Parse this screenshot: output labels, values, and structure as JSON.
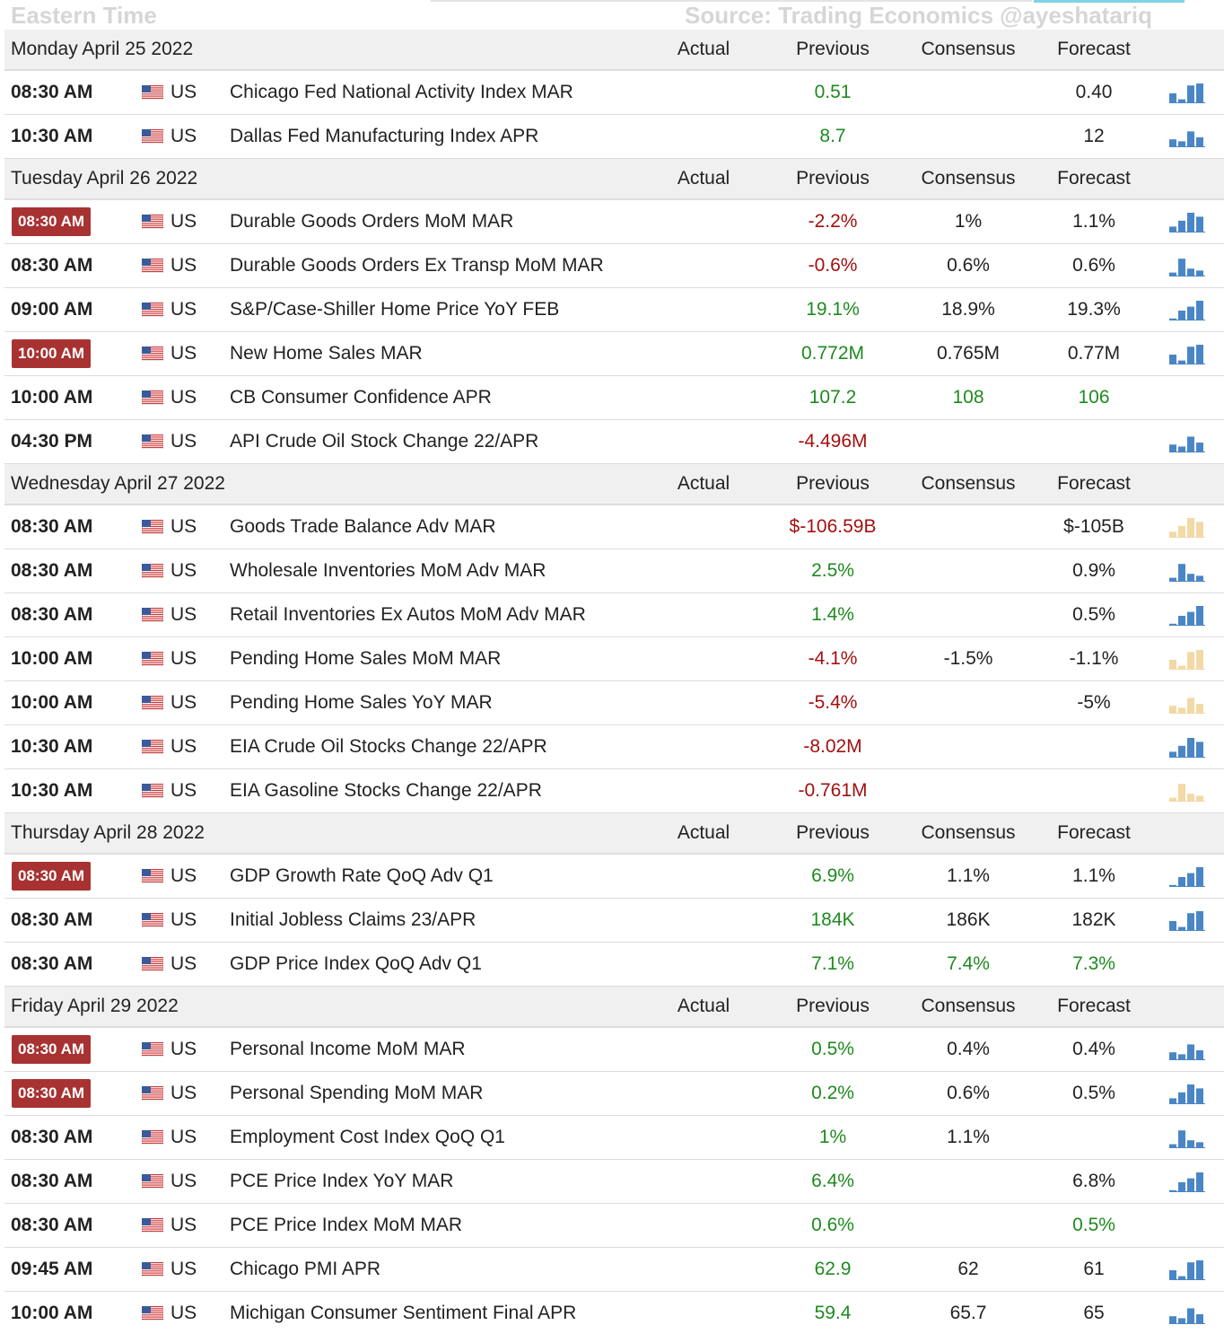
{
  "header": {
    "left": "Eastern Time",
    "right": "Source: Trading Economics @ayeshatariq"
  },
  "columns": [
    "Actual",
    "Previous",
    "Consensus",
    "Forecast"
  ],
  "days": [
    {
      "date": "Monday April 25 2022",
      "rows": [
        {
          "time": "08:30 AM",
          "country": "US",
          "event": "Chicago Fed National Activity Index MAR",
          "previous": "0.51",
          "forecast": "0.40",
          "colors": {
            "previous": "#1f8a1f"
          },
          "spark": "#4a86c5"
        },
        {
          "time": "10:30 AM",
          "country": "US",
          "event": "Dallas Fed Manufacturing Index APR",
          "previous": "8.7",
          "forecast": "12",
          "colors": {
            "previous": "#1f8a1f"
          },
          "spark": "#4a86c5"
        }
      ]
    },
    {
      "date": "Tuesday April 26 2022",
      "rows": [
        {
          "time": "08:30 AM",
          "highlight": true,
          "country": "US",
          "event": "Durable Goods Orders MoM MAR",
          "previous": "-2.2%",
          "consensus": "1%",
          "forecast": "1.1%",
          "colors": {
            "previous": "#a31010"
          },
          "spark": "#4a86c5"
        },
        {
          "time": "08:30 AM",
          "country": "US",
          "event": "Durable Goods Orders Ex Transp MoM MAR",
          "previous": "-0.6%",
          "consensus": "0.6%",
          "forecast": "0.6%",
          "colors": {
            "previous": "#a31010"
          },
          "spark": "#4a86c5"
        },
        {
          "time": "09:00 AM",
          "country": "US",
          "event": "S&P/Case-Shiller Home Price YoY FEB",
          "previous": "19.1%",
          "consensus": "18.9%",
          "forecast": "19.3%",
          "colors": {
            "previous": "#1f8a1f"
          },
          "spark": "#4a86c5"
        },
        {
          "time": "10:00 AM",
          "highlight": true,
          "country": "US",
          "event": "New Home Sales MAR",
          "previous": "0.772M",
          "consensus": "0.765M",
          "forecast": "0.77M",
          "colors": {
            "previous": "#1f8a1f"
          },
          "spark": "#4a86c5"
        },
        {
          "time": "10:00 AM",
          "country": "US",
          "event": "CB Consumer Confidence APR",
          "previous": "107.2",
          "consensus": "108",
          "forecast": "106",
          "colors": {
            "previous": "#1f8a1f",
            "consensus": "#1f8a1f",
            "forecast": "#1f8a1f"
          }
        },
        {
          "time": "04:30 PM",
          "country": "US",
          "event": "API Crude Oil Stock Change 22/APR",
          "previous": "-4.496M",
          "colors": {
            "previous": "#a31010"
          },
          "spark": "#4a86c5"
        }
      ]
    },
    {
      "date": "Wednesday April 27 2022",
      "rows": [
        {
          "time": "08:30 AM",
          "country": "US",
          "event": "Goods Trade Balance Adv MAR",
          "previous": "$-106.59B",
          "forecast": "$-105B",
          "colors": {
            "previous": "#a31010"
          },
          "spark": "#f3d9a6"
        },
        {
          "time": "08:30 AM",
          "country": "US",
          "event": "Wholesale Inventories MoM Adv MAR",
          "previous": "2.5%",
          "forecast": "0.9%",
          "colors": {
            "previous": "#1f8a1f"
          },
          "spark": "#4a86c5"
        },
        {
          "time": "08:30 AM",
          "country": "US",
          "event": "Retail Inventories Ex Autos MoM Adv MAR",
          "previous": "1.4%",
          "forecast": "0.5%",
          "colors": {
            "previous": "#1f8a1f"
          },
          "spark": "#4a86c5"
        },
        {
          "time": "10:00 AM",
          "country": "US",
          "event": "Pending Home Sales MoM MAR",
          "previous": "-4.1%",
          "consensus": "-1.5%",
          "forecast": "-1.1%",
          "colors": {
            "previous": "#a31010"
          },
          "spark": "#f3d9a6"
        },
        {
          "time": "10:00 AM",
          "country": "US",
          "event": "Pending Home Sales YoY MAR",
          "previous": "-5.4%",
          "forecast": "-5%",
          "colors": {
            "previous": "#a31010"
          },
          "spark": "#f3d9a6"
        },
        {
          "time": "10:30 AM",
          "country": "US",
          "event": "EIA Crude Oil Stocks Change 22/APR",
          "previous": "-8.02M",
          "colors": {
            "previous": "#a31010"
          },
          "spark": "#4a86c5"
        },
        {
          "time": "10:30 AM",
          "country": "US",
          "event": "EIA Gasoline Stocks Change 22/APR",
          "previous": "-0.761M",
          "colors": {
            "previous": "#a31010"
          },
          "spark": "#f3d9a6"
        }
      ]
    },
    {
      "date": "Thursday April 28 2022",
      "rows": [
        {
          "time": "08:30 AM",
          "highlight": true,
          "country": "US",
          "event": "GDP Growth Rate QoQ Adv Q1",
          "previous": "6.9%",
          "consensus": "1.1%",
          "forecast": "1.1%",
          "colors": {
            "previous": "#1f8a1f"
          },
          "spark": "#4a86c5"
        },
        {
          "time": "08:30 AM",
          "country": "US",
          "event": "Initial Jobless Claims 23/APR",
          "previous": "184K",
          "consensus": "186K",
          "forecast": "182K",
          "colors": {
            "previous": "#1f8a1f"
          },
          "spark": "#4a86c5"
        },
        {
          "time": "08:30 AM",
          "country": "US",
          "event": "GDP Price Index QoQ Adv Q1",
          "previous": "7.1%",
          "consensus": "7.4%",
          "forecast": "7.3%",
          "colors": {
            "previous": "#1f8a1f",
            "consensus": "#1f8a1f",
            "forecast": "#1f8a1f"
          }
        }
      ]
    },
    {
      "date": "Friday April 29 2022",
      "rows": [
        {
          "time": "08:30 AM",
          "highlight": true,
          "country": "US",
          "event": "Personal Income MoM MAR",
          "previous": "0.5%",
          "consensus": "0.4%",
          "forecast": "0.4%",
          "colors": {
            "previous": "#1f8a1f"
          },
          "spark": "#4a86c5"
        },
        {
          "time": "08:30 AM",
          "highlight": true,
          "country": "US",
          "event": "Personal Spending MoM MAR",
          "previous": "0.2%",
          "consensus": "0.6%",
          "forecast": "0.5%",
          "colors": {
            "previous": "#1f8a1f"
          },
          "spark": "#4a86c5"
        },
        {
          "time": "08:30 AM",
          "country": "US",
          "event": "Employment Cost Index QoQ Q1",
          "previous": "1%",
          "consensus": "1.1%",
          "colors": {
            "previous": "#1f8a1f"
          },
          "spark": "#4a86c5"
        },
        {
          "time": "08:30 AM",
          "country": "US",
          "event": "PCE Price Index YoY MAR",
          "previous": "6.4%",
          "forecast": "6.8%",
          "colors": {
            "previous": "#1f8a1f"
          },
          "spark": "#4a86c5"
        },
        {
          "time": "08:30 AM",
          "country": "US",
          "event": "PCE Price Index MoM MAR",
          "previous": "0.6%",
          "forecast": "0.5%",
          "colors": {
            "previous": "#1f8a1f",
            "forecast": "#1f8a1f"
          }
        },
        {
          "time": "09:45 AM",
          "country": "US",
          "event": "Chicago PMI APR",
          "previous": "62.9",
          "consensus": "62",
          "forecast": "61",
          "colors": {
            "previous": "#1f8a1f"
          },
          "spark": "#4a86c5"
        },
        {
          "time": "10:00 AM",
          "country": "US",
          "event": "Michigan Consumer Sentiment Final APR",
          "previous": "59.4",
          "consensus": "65.7",
          "forecast": "65",
          "colors": {
            "previous": "#1f8a1f"
          },
          "spark": "#4a86c5"
        }
      ]
    }
  ]
}
